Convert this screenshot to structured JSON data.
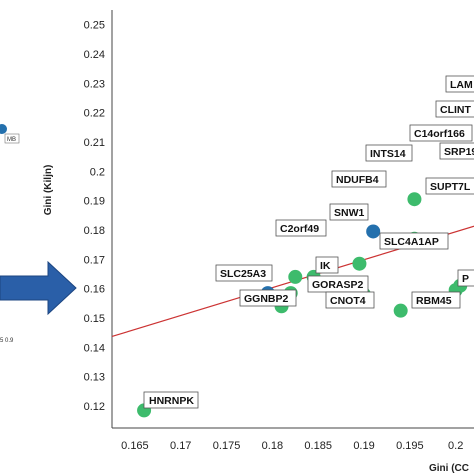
{
  "chart_data": {
    "type": "scatter",
    "xlabel": "Gini (CC",
    "ylabel": "Gini (Kiljn)",
    "xlim": [
      0.1625,
      0.202
    ],
    "ylim": [
      0.1125,
      0.255
    ],
    "x_ticks": [
      0.165,
      0.17,
      0.175,
      0.18,
      0.185,
      0.19,
      0.195,
      0.2
    ],
    "x_tick_labels": [
      "0.165",
      "0.17",
      "0.175",
      "0.18",
      "0.185",
      "0.19",
      "0.195",
      "0.2"
    ],
    "y_ticks": [
      0.12,
      0.13,
      0.14,
      0.15,
      0.16,
      0.17,
      0.18,
      0.19,
      0.2,
      0.21,
      0.22,
      0.23,
      0.24,
      0.25
    ],
    "y_tick_labels": [
      "0.12",
      "0.13",
      "0.14",
      "0.15",
      "0.16",
      "0.17",
      "0.18",
      "0.19",
      "0.2",
      "0.21",
      "0.22",
      "0.23",
      "0.24",
      "0.25"
    ],
    "grid": false,
    "trendline": {
      "x": [
        0.1625,
        0.202
      ],
      "y": [
        0.1437,
        0.1813
      ],
      "color": "#cc3333"
    },
    "colors": {
      "green": "#3dbb6c",
      "blue": "#2470ad"
    },
    "points": [
      {
        "x": 0.166,
        "y": 0.1185,
        "color": "green",
        "label": "HNRNPK"
      },
      {
        "x": 0.1795,
        "y": 0.1585,
        "color": "blue",
        "label": "SLC25A3"
      },
      {
        "x": 0.181,
        "y": 0.154,
        "color": "green",
        "label": "GGNBP2"
      },
      {
        "x": 0.182,
        "y": 0.1585,
        "color": "green",
        "label": "IK"
      },
      {
        "x": 0.1825,
        "y": 0.164,
        "color": "green",
        "label": "C2orf49"
      },
      {
        "x": 0.1845,
        "y": 0.164,
        "color": "green",
        "label": "SNW1"
      },
      {
        "x": 0.1865,
        "y": 0.1615,
        "color": "green",
        "label": "GORASP2"
      },
      {
        "x": 0.1895,
        "y": 0.1685,
        "color": "green",
        "label": "SLC4A1AP"
      },
      {
        "x": 0.19,
        "y": 0.158,
        "color": "green",
        "label": "CNOT4"
      },
      {
        "x": 0.191,
        "y": 0.1795,
        "color": "blue",
        "label": "NDUFB4"
      },
      {
        "x": 0.1955,
        "y": 0.1905,
        "color": "green",
        "label": "INTS14"
      },
      {
        "x": 0.1955,
        "y": 0.177,
        "color": "green",
        "label": "SUPT7L"
      },
      {
        "x": 0.194,
        "y": 0.1525,
        "color": "green",
        "label": "RBM45"
      },
      {
        "x": 0.2,
        "y": 0.1595,
        "color": "green",
        "label": "P"
      },
      {
        "x": 0.2005,
        "y": 0.161,
        "color": "green",
        "label": ""
      }
    ],
    "extra_labels": [
      "LAM",
      "CLINT",
      "C14orf166",
      "SRP19"
    ]
  },
  "inset": {
    "label": "MB",
    "axis_text": "5 0.9"
  }
}
